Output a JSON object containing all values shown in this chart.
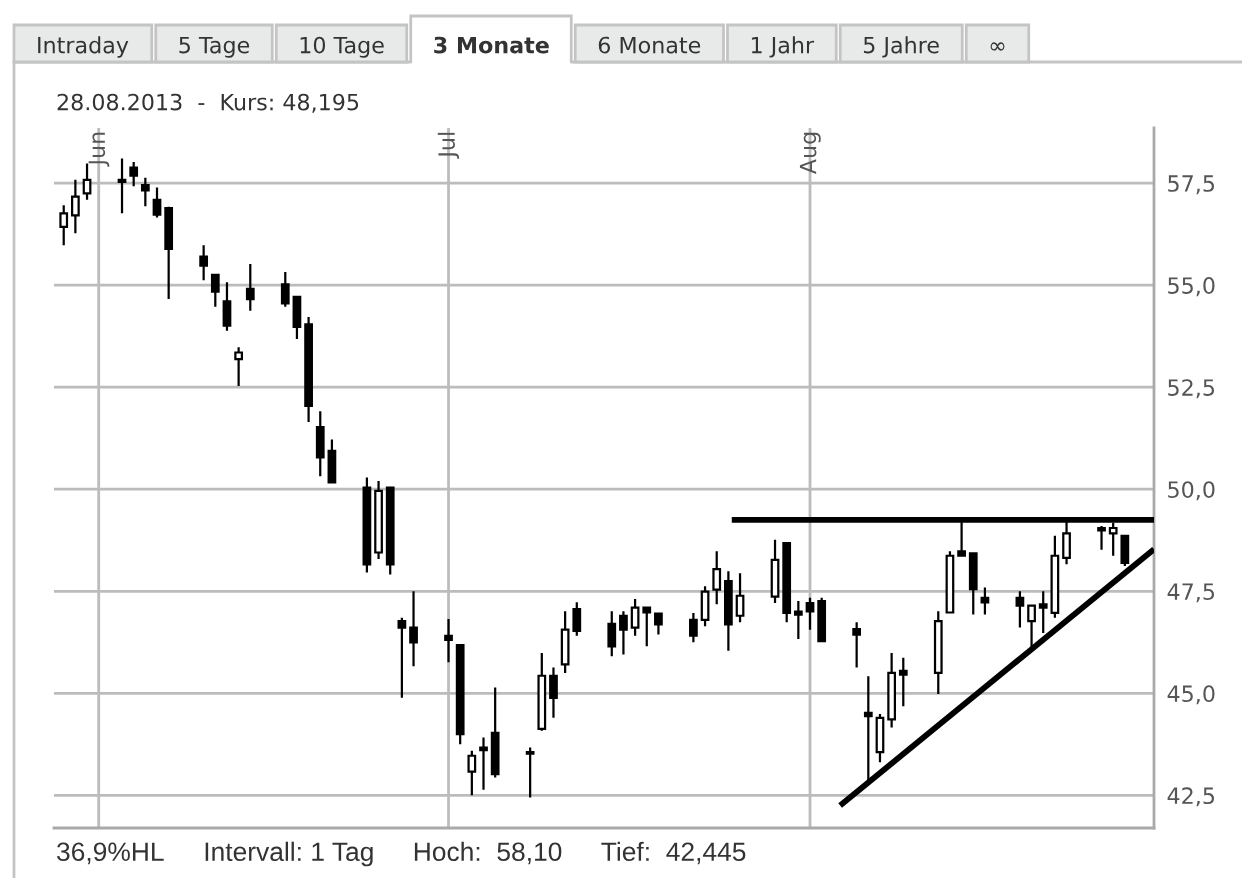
{
  "chart_data": {
    "type": "candlestick",
    "title": "28.08.2013  -  Kurs: 48,195",
    "annotations": [
      "Intraday",
      "5 Tage",
      "10 Tage",
      "3 Monate",
      "6 Monate",
      "1 Jahr",
      "5 Jahre",
      "∞",
      "36,9%HL",
      "Intervall: 1 Tag",
      "Hoch:  58,10",
      "Tief:  42,445"
    ],
    "series": [
      {
        "color": "#000000",
        "x": [
          "2013-05-29",
          "2013-05-30",
          "2013-05-31",
          "2013-06-03",
          "2013-06-04",
          "2013-06-05",
          "2013-06-06",
          "2013-06-07",
          "2013-06-10",
          "2013-06-11",
          "2013-06-12",
          "2013-06-13",
          "2013-06-14",
          "2013-06-17",
          "2013-06-18",
          "2013-06-19",
          "2013-06-20",
          "2013-06-21",
          "2013-06-24",
          "2013-06-25",
          "2013-06-26",
          "2013-06-27",
          "2013-06-28",
          "2013-07-01",
          "2013-07-02",
          "2013-07-03",
          "2013-07-04",
          "2013-07-05",
          "2013-07-08",
          "2013-07-09",
          "2013-07-10",
          "2013-07-11",
          "2013-07-12",
          "2013-07-15",
          "2013-07-16",
          "2013-07-17",
          "2013-07-18",
          "2013-07-19",
          "2013-07-22",
          "2013-07-23",
          "2013-07-24",
          "2013-07-25",
          "2013-07-26",
          "2013-07-29",
          "2013-07-30",
          "2013-07-31",
          "2013-08-01",
          "2013-08-02",
          "2013-08-05",
          "2013-08-06",
          "2013-08-07",
          "2013-08-08",
          "2013-08-09",
          "2013-08-12",
          "2013-08-13",
          "2013-08-14",
          "2013-08-15",
          "2013-08-16",
          "2013-08-19",
          "2013-08-20",
          "2013-08-21",
          "2013-08-22",
          "2013-08-23",
          "2013-08-26",
          "2013-08-27",
          "2013-08-28"
        ],
        "ohlc": [
          [
            56.43,
            56.96,
            55.98,
            56.76
          ],
          [
            56.71,
            57.58,
            56.27,
            57.17
          ],
          [
            57.25,
            57.98,
            57.09,
            57.58
          ],
          [
            57.58,
            58.1,
            56.76,
            57.53
          ],
          [
            57.88,
            58.02,
            57.42,
            57.68
          ],
          [
            57.45,
            57.63,
            56.93,
            57.32
          ],
          [
            57.09,
            57.39,
            56.66,
            56.73
          ],
          [
            56.89,
            56.92,
            54.66,
            55.89
          ],
          [
            55.7,
            55.98,
            55.12,
            55.48
          ],
          [
            55.25,
            55.27,
            54.47,
            54.84
          ],
          [
            54.6,
            55.07,
            53.88,
            54.01
          ],
          [
            53.19,
            53.48,
            52.53,
            53.35
          ],
          [
            54.91,
            55.52,
            54.37,
            54.66
          ],
          [
            55.02,
            55.32,
            54.47,
            54.55
          ],
          [
            54.71,
            54.73,
            53.68,
            53.98
          ],
          [
            54.04,
            54.22,
            51.65,
            52.04
          ],
          [
            51.52,
            51.91,
            50.32,
            50.78
          ],
          [
            50.94,
            51.22,
            50.15,
            50.17
          ],
          [
            50.04,
            50.29,
            47.96,
            48.16
          ],
          [
            48.45,
            50.2,
            48.29,
            49.96
          ],
          [
            50.04,
            50.06,
            47.91,
            48.16
          ],
          [
            46.77,
            46.85,
            44.89,
            46.61
          ],
          [
            46.61,
            47.5,
            45.66,
            46.25
          ],
          [
            46.41,
            46.82,
            45.76,
            46.31
          ],
          [
            46.18,
            46.2,
            43.75,
            44.0
          ],
          [
            43.08,
            43.59,
            42.5,
            43.47
          ],
          [
            43.67,
            43.92,
            42.64,
            43.61
          ],
          [
            44.03,
            45.14,
            42.94,
            43.02
          ],
          [
            43.56,
            43.67,
            42.445,
            43.52
          ],
          [
            44.13,
            45.99,
            44.08,
            45.43
          ],
          [
            45.43,
            45.63,
            44.4,
            44.89
          ],
          [
            45.71,
            47.01,
            45.5,
            46.56
          ],
          [
            47.06,
            47.23,
            46.41,
            46.53
          ],
          [
            46.7,
            47.01,
            45.91,
            46.15
          ],
          [
            46.9,
            47.01,
            45.95,
            46.56
          ],
          [
            46.61,
            47.31,
            46.41,
            47.1
          ],
          [
            47.1,
            47.12,
            46.15,
            46.98
          ],
          [
            46.95,
            46.97,
            46.44,
            46.69
          ],
          [
            46.8,
            46.97,
            46.25,
            46.41
          ],
          [
            46.8,
            47.62,
            46.64,
            47.49
          ],
          [
            47.54,
            48.48,
            47.18,
            48.04
          ],
          [
            47.75,
            47.99,
            46.04,
            46.69
          ],
          [
            46.9,
            47.94,
            46.74,
            47.39
          ],
          [
            47.37,
            48.76,
            47.21,
            48.27
          ],
          [
            48.68,
            48.7,
            46.74,
            46.97
          ],
          [
            47.0,
            47.26,
            46.33,
            46.93
          ],
          [
            47.21,
            47.34,
            46.56,
            47.01
          ],
          [
            47.26,
            47.34,
            46.25,
            46.28
          ],
          [
            46.57,
            46.74,
            45.63,
            46.44
          ],
          [
            44.52,
            45.42,
            42.77,
            44.44
          ],
          [
            43.56,
            44.49,
            43.31,
            44.4
          ],
          [
            44.36,
            45.99,
            44.16,
            45.5
          ],
          [
            45.55,
            45.87,
            44.68,
            45.46
          ],
          [
            45.5,
            47.01,
            44.98,
            46.77
          ],
          [
            46.98,
            48.48,
            46.96,
            48.37
          ],
          [
            48.48,
            49.22,
            48.35,
            48.37
          ],
          [
            48.43,
            48.45,
            46.93,
            47.55
          ],
          [
            47.34,
            47.59,
            46.93,
            47.23
          ],
          [
            47.34,
            47.5,
            46.61,
            47.15
          ],
          [
            46.77,
            47.17,
            46.12,
            47.15
          ],
          [
            47.18,
            47.5,
            46.48,
            47.1
          ],
          [
            46.97,
            48.86,
            46.85,
            48.37
          ],
          [
            48.32,
            49.25,
            48.16,
            48.92
          ],
          [
            49.05,
            49.1,
            48.52,
            48.99
          ],
          [
            48.92,
            49.18,
            48.37,
            49.05
          ],
          [
            48.86,
            48.88,
            48.12,
            48.195
          ]
        ]
      },
      {
        "type": "line",
        "color": "#000000",
        "x": [
          "2013-07-25T07:00",
          "2013-08-30T12:00"
        ],
        "values": [
          49.25,
          49.25
        ]
      },
      {
        "type": "line",
        "color": "#000000",
        "x": [
          "2013-08-03T14:00",
          "2013-08-30T12:00"
        ],
        "values": [
          42.25,
          48.53
        ]
      }
    ],
    "xlim": [
      "2013-05-28T04:00",
      "2013-08-30T12:00"
    ],
    "xticks": [
      {
        "value": "2013-06-01",
        "label": "Jun"
      },
      {
        "value": "2013-07-01",
        "label": "Jul"
      },
      {
        "value": "2013-08-01",
        "label": "Aug"
      }
    ],
    "ylim": [
      41.7,
      58.85
    ],
    "yticks": [
      {
        "value": 42.5,
        "label": "42,5"
      },
      {
        "value": 45,
        "label": "45,0"
      },
      {
        "value": 47.5,
        "label": "47,5"
      },
      {
        "value": 50,
        "label": "50,0"
      },
      {
        "value": 52.5,
        "label": "52,5"
      },
      {
        "value": 55,
        "label": "55,0"
      },
      {
        "value": 57.5,
        "label": "57,5"
      }
    ],
    "grid": true
  }
}
